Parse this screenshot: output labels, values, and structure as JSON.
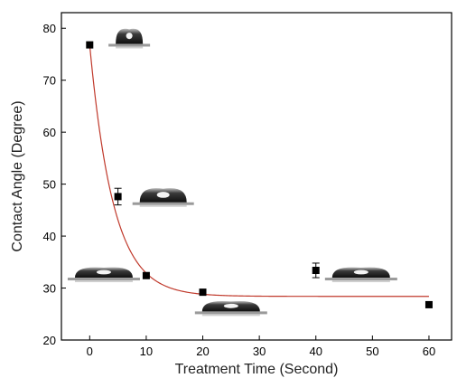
{
  "chart_data": {
    "type": "scatter",
    "xlabel": "Treatment Time (Second)",
    "ylabel": "Contact Angle (Degree)",
    "xlim": [
      -5,
      64
    ],
    "ylim": [
      20,
      83
    ],
    "xticks": [
      0,
      10,
      20,
      30,
      40,
      50,
      60
    ],
    "yticks": [
      20,
      30,
      40,
      50,
      60,
      70,
      80
    ],
    "grid": false,
    "legend": "none",
    "colors": {
      "points": "#000000",
      "fit_line": "#c0392b",
      "axis": "#000000"
    },
    "series": [
      {
        "type": "scatter",
        "x": [
          0,
          5,
          10,
          20,
          40,
          60
        ],
        "y": [
          76.8,
          47.6,
          32.4,
          29.2,
          33.4,
          26.8
        ],
        "error": [
          0,
          1.6,
          0,
          0,
          1.4,
          0
        ]
      },
      {
        "type": "fit-line",
        "model": "exponential decay",
        "y0": 28.4,
        "A": 48.4,
        "tau": 4.2
      }
    ],
    "annotations": [
      {
        "type": "droplet-image",
        "shape": "round",
        "x": 7,
        "y": 77
      },
      {
        "type": "droplet-image",
        "shape": "medium",
        "x": 13,
        "y": 46.5
      },
      {
        "type": "droplet-image",
        "shape": "flat",
        "x": 2.5,
        "y": 32
      },
      {
        "type": "droplet-image",
        "shape": "flat",
        "x": 25,
        "y": 25.5
      },
      {
        "type": "droplet-image",
        "shape": "flat",
        "x": 48,
        "y": 32
      }
    ]
  }
}
